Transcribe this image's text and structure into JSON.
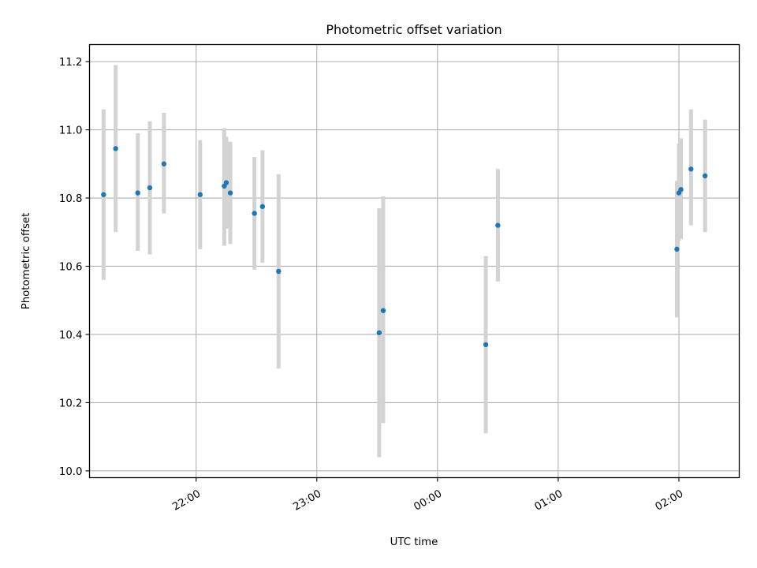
{
  "chart_data": {
    "type": "scatter",
    "title": "Photometric offset variation",
    "xlabel": "UTC time",
    "ylabel": "Photometric offset",
    "x_ticks": [
      "22:00",
      "23:00",
      "00:00",
      "01:00",
      "02:00"
    ],
    "y_ticks": [
      "10.0",
      "10.2",
      "10.4",
      "10.6",
      "10.8",
      "11.0",
      "11.2"
    ],
    "xlim": [
      "21:07",
      "02:30"
    ],
    "ylim": [
      9.98,
      11.25
    ],
    "grid": true,
    "colors": {
      "point": "#1f77b4",
      "error_bar": "#d3d3d3",
      "grid": "#b0b0b0"
    },
    "points": [
      {
        "time": "21:14",
        "y": 10.81,
        "err_low": 10.56,
        "err_high": 11.06
      },
      {
        "time": "21:20",
        "y": 10.945,
        "err_low": 10.7,
        "err_high": 11.19
      },
      {
        "time": "21:31",
        "y": 10.815,
        "err_low": 10.645,
        "err_high": 10.99
      },
      {
        "time": "21:37",
        "y": 10.83,
        "err_low": 10.635,
        "err_high": 11.025
      },
      {
        "time": "21:44",
        "y": 10.9,
        "err_low": 10.755,
        "err_high": 11.05
      },
      {
        "time": "22:02",
        "y": 10.81,
        "err_low": 10.65,
        "err_high": 10.97
      },
      {
        "time": "22:14",
        "y": 10.835,
        "err_low": 10.66,
        "err_high": 11.005
      },
      {
        "time": "22:15",
        "y": 10.845,
        "err_low": 10.71,
        "err_high": 10.98
      },
      {
        "time": "22:17",
        "y": 10.815,
        "err_low": 10.665,
        "err_high": 10.965
      },
      {
        "time": "22:29",
        "y": 10.755,
        "err_low": 10.59,
        "err_high": 10.92
      },
      {
        "time": "22:33",
        "y": 10.775,
        "err_low": 10.61,
        "err_high": 10.94
      },
      {
        "time": "22:41",
        "y": 10.585,
        "err_low": 10.3,
        "err_high": 10.87
      },
      {
        "time": "23:31",
        "y": 10.405,
        "err_low": 10.04,
        "err_high": 10.77
      },
      {
        "time": "23:33",
        "y": 10.47,
        "err_low": 10.14,
        "err_high": 10.805
      },
      {
        "time": "00:24",
        "y": 10.37,
        "err_low": 10.11,
        "err_high": 10.63
      },
      {
        "time": "00:30",
        "y": 10.72,
        "err_low": 10.555,
        "err_high": 10.885
      },
      {
        "time": "01:59",
        "y": 10.65,
        "err_low": 10.45,
        "err_high": 10.85
      },
      {
        "time": "02:00",
        "y": 10.815,
        "err_low": 10.675,
        "err_high": 10.96
      },
      {
        "time": "02:01",
        "y": 10.825,
        "err_low": 10.68,
        "err_high": 10.975
      },
      {
        "time": "02:06",
        "y": 10.885,
        "err_low": 10.72,
        "err_high": 11.06
      },
      {
        "time": "02:13",
        "y": 10.865,
        "err_low": 10.7,
        "err_high": 11.03
      }
    ]
  }
}
